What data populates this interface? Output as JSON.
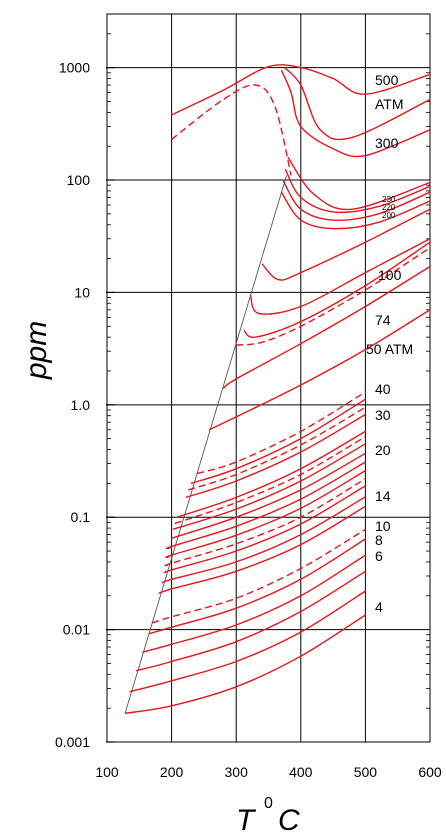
{
  "chart_data": {
    "type": "line",
    "title": "",
    "xlabel": "T",
    "xlabel_superscript": "0",
    "xlabel_unit": "C",
    "ylabel": "ppm",
    "xlim": [
      100,
      600
    ],
    "ylim": [
      0.001,
      3000
    ],
    "yscale": "log",
    "grid": true,
    "x_ticks": [
      "100",
      "200",
      "300",
      "400",
      "500",
      "600"
    ],
    "y_ticks": [
      "0.001",
      "0.01",
      "0.1",
      "1.0",
      "10",
      "100",
      "1000"
    ],
    "series_color": "#e8141b",
    "boundary_color": "#555555",
    "series": [
      {
        "name": "4",
        "style": "solid",
        "x": [
          128,
          200,
          300,
          400,
          500
        ],
        "y": [
          0.0018,
          0.0021,
          0.0031,
          0.0058,
          0.0135
        ]
      },
      {
        "name": "",
        "style": "solid",
        "x": [
          135,
          200,
          300,
          400,
          500
        ],
        "y": [
          0.0028,
          0.0035,
          0.0052,
          0.0095,
          0.022
        ]
      },
      {
        "name": "",
        "style": "solid",
        "x": [
          145,
          200,
          300,
          400,
          500
        ],
        "y": [
          0.0043,
          0.0052,
          0.0078,
          0.0145,
          0.033
        ]
      },
      {
        "name": "",
        "style": "solid",
        "x": [
          155,
          200,
          300,
          400,
          500
        ],
        "y": [
          0.0063,
          0.0074,
          0.011,
          0.02,
          0.046
        ]
      },
      {
        "name": "",
        "style": "solid",
        "x": [
          165,
          200,
          300,
          400,
          500
        ],
        "y": [
          0.0092,
          0.0105,
          0.0155,
          0.028,
          0.064
        ]
      },
      {
        "name": "",
        "style": "dashed",
        "x": [
          170,
          200,
          300,
          400,
          500
        ],
        "y": [
          0.0115,
          0.013,
          0.019,
          0.035,
          0.078
        ]
      },
      {
        "name": "6",
        "style": "solid",
        "x": [
          180,
          200,
          300,
          400,
          500
        ],
        "y": [
          0.021,
          0.023,
          0.033,
          0.057,
          0.125
        ]
      },
      {
        "name": "",
        "style": "solid",
        "x": [
          185,
          200,
          300,
          400,
          500
        ],
        "y": [
          0.026,
          0.028,
          0.04,
          0.07,
          0.152
        ]
      },
      {
        "name": "8",
        "style": "solid",
        "x": [
          190,
          200,
          300,
          400,
          500
        ],
        "y": [
          0.032,
          0.034,
          0.05,
          0.087,
          0.19
        ]
      },
      {
        "name": "",
        "style": "dashed",
        "x": [
          193,
          200,
          300,
          400,
          500
        ],
        "y": [
          0.037,
          0.039,
          0.058,
          0.1,
          0.22
        ]
      },
      {
        "name": "10",
        "style": "solid",
        "x": [
          196,
          200,
          300,
          400,
          500
        ],
        "y": [
          0.044,
          0.046,
          0.069,
          0.12,
          0.26
        ]
      },
      {
        "name": "",
        "style": "solid",
        "x": [
          198,
          200,
          300,
          400,
          500
        ],
        "y": [
          0.053,
          0.055,
          0.083,
          0.145,
          0.31
        ]
      },
      {
        "name": "",
        "style": "solid",
        "x": [
          200,
          300,
          400,
          500
        ],
        "y": [
          0.065,
          0.1,
          0.175,
          0.37
        ]
      },
      {
        "name": "",
        "style": "solid",
        "x": [
          202,
          300,
          400,
          500
        ],
        "y": [
          0.078,
          0.118,
          0.21,
          0.45
        ]
      },
      {
        "name": "",
        "style": "dashed",
        "x": [
          205,
          300,
          400,
          500
        ],
        "y": [
          0.088,
          0.135,
          0.24,
          0.52
        ]
      },
      {
        "name": "14",
        "style": "solid",
        "x": [
          208,
          300,
          400,
          500
        ],
        "y": [
          0.1,
          0.15,
          0.27,
          0.58
        ]
      },
      {
        "name": "",
        "style": "solid",
        "x": [
          222,
          300,
          400,
          500
        ],
        "y": [
          0.15,
          0.21,
          0.38,
          0.82
        ]
      },
      {
        "name": "20",
        "style": "dashed",
        "x": [
          226,
          300,
          400,
          500
        ],
        "y": [
          0.175,
          0.24,
          0.44,
          0.95
        ]
      },
      {
        "name": "",
        "style": "solid",
        "x": [
          230,
          300,
          400,
          500
        ],
        "y": [
          0.2,
          0.27,
          0.5,
          1.12
        ]
      },
      {
        "name": "30",
        "style": "dashed",
        "x": [
          240,
          300,
          400,
          500
        ],
        "y": [
          0.245,
          0.31,
          0.58,
          1.3
        ]
      },
      {
        "name": "40",
        "style": "solid",
        "x": [
          258,
          300,
          400,
          500,
          600
        ],
        "y": [
          0.6,
          0.78,
          1.5,
          3.1,
          7.0
        ]
      },
      {
        "name": "",
        "style": "solid",
        "x": [
          280,
          300,
          400,
          500,
          600
        ],
        "y": [
          1.4,
          1.7,
          3.5,
          7.5,
          17.0
        ]
      },
      {
        "name": "50 ATM",
        "style": "dashed",
        "x": [
          300,
          340,
          400,
          500,
          600
        ],
        "y": [
          3.4,
          3.6,
          5.0,
          10.5,
          25.0
        ]
      },
      {
        "name": "74",
        "style": "solid",
        "x": [
          312,
          330,
          400,
          500,
          600
        ],
        "y": [
          4.6,
          4.0,
          5.5,
          11.5,
          28.0
        ]
      },
      {
        "name": "100",
        "style": "solid",
        "x": [
          322,
          335,
          400,
          500,
          600
        ],
        "y": [
          9.5,
          6.5,
          7.5,
          15.0,
          30.0
        ]
      },
      {
        "name": "",
        "style": "solid",
        "x": [
          340,
          365,
          400,
          500,
          600
        ],
        "y": [
          18.0,
          13.0,
          15.0,
          28.0,
          55.0
        ]
      },
      {
        "name": "200",
        "style": "solid",
        "x": [
          370,
          400,
          450,
          520,
          600
        ],
        "y": [
          78.0,
          44.0,
          37.0,
          42.0,
          65.0
        ]
      },
      {
        "name": "220",
        "style": "solid",
        "x": [
          373,
          400,
          450,
          520,
          600
        ],
        "y": [
          98.0,
          55.0,
          44.0,
          50.0,
          78.0
        ]
      },
      {
        "name": "230",
        "style": "solid",
        "x": [
          376,
          400,
          450,
          520,
          600
        ],
        "y": [
          125.0,
          70.0,
          52.0,
          58.0,
          88.0
        ]
      },
      {
        "name": "",
        "style": "solid",
        "x": [
          380,
          420,
          480,
          600
        ],
        "y": [
          160.0,
          75.0,
          55.0,
          95.0
        ]
      },
      {
        "name": "300",
        "style": "solid",
        "x": [
          370,
          385,
          400,
          450,
          500,
          600
        ],
        "y": [
          950.0,
          600.0,
          300.0,
          190.0,
          165.0,
          280.0
        ]
      },
      {
        "name": "ATM",
        "style": "solid",
        "x": [
          375,
          400,
          430,
          480,
          600
        ],
        "y": [
          1000.0,
          700.0,
          280.0,
          240.0,
          520.0
        ]
      },
      {
        "name": "500",
        "style": "solid",
        "x": [
          200,
          280,
          350,
          400,
          450,
          500,
          600
        ],
        "y": [
          380.0,
          630.0,
          1020.0,
          1000.0,
          800.0,
          580.0,
          870.0
        ]
      },
      {
        "name": "",
        "style": "dashed",
        "x": [
          200,
          280,
          330,
          360,
          385
        ],
        "y": [
          230.0,
          520.0,
          700.0,
          450.0,
          110.0
        ]
      }
    ],
    "curve_labels": [
      "500",
      "ATM",
      "300",
      "230",
      "220",
      "200",
      "100",
      "74",
      "50 ATM",
      "40",
      "30",
      "20",
      "14",
      "10",
      "8",
      "6",
      "4"
    ],
    "boundary": {
      "x": [
        128,
        378
      ],
      "y": [
        0.0018,
        110.0
      ]
    }
  }
}
